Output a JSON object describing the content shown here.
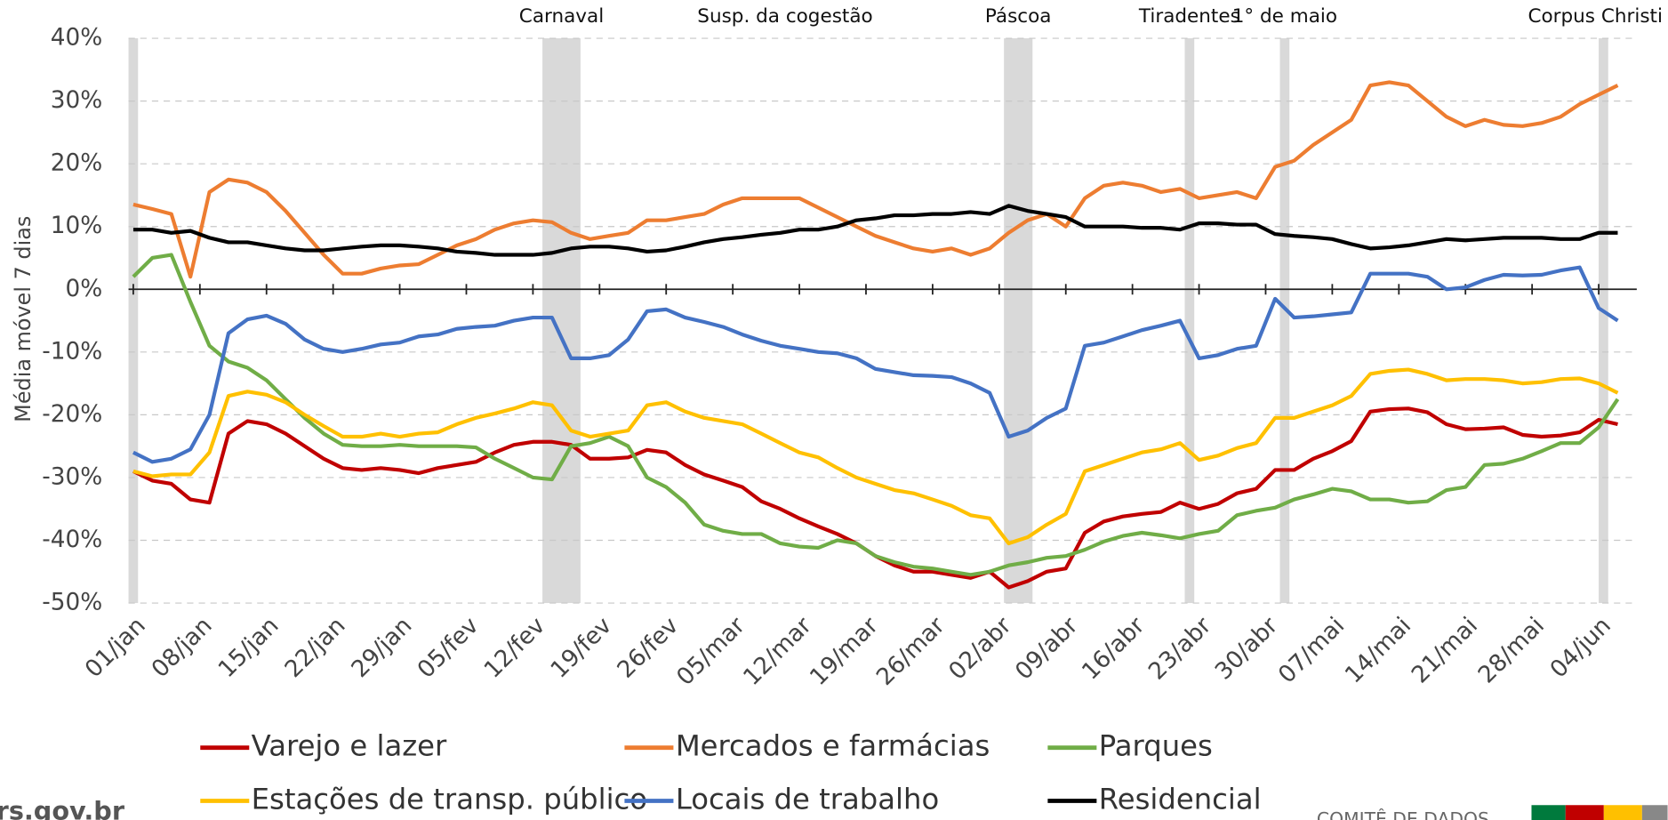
{
  "chart_data": {
    "type": "line",
    "y_label": "Média móvel 7 dias",
    "x": [
      0,
      2,
      4,
      6,
      8,
      10,
      12,
      14,
      16,
      18,
      20,
      22,
      24,
      26,
      28,
      30,
      32,
      34,
      36,
      38,
      40,
      42,
      44,
      46,
      48,
      50,
      52,
      54,
      56,
      58,
      60,
      62,
      64,
      66,
      68,
      70,
      72,
      74,
      76,
      78,
      80,
      82,
      84,
      86,
      88,
      90,
      92,
      94,
      96,
      98,
      100,
      102,
      104,
      106,
      108,
      110,
      112,
      114,
      116,
      118,
      120,
      122,
      124,
      126,
      128,
      130,
      132,
      134,
      136,
      138,
      140,
      142,
      144,
      146,
      148,
      150,
      152,
      154,
      156
    ],
    "xlim": [
      -0.5,
      158
    ],
    "xticks": [
      {
        "value": 0,
        "label": "01/jan"
      },
      {
        "value": 7,
        "label": "08/jan"
      },
      {
        "value": 14,
        "label": "15/jan"
      },
      {
        "value": 21,
        "label": "22/jan"
      },
      {
        "value": 28,
        "label": "29/jan"
      },
      {
        "value": 35,
        "label": "05/fev"
      },
      {
        "value": 42,
        "label": "12/fev"
      },
      {
        "value": 49,
        "label": "19/fev"
      },
      {
        "value": 56,
        "label": "26/fev"
      },
      {
        "value": 63,
        "label": "05/mar"
      },
      {
        "value": 70,
        "label": "12/mar"
      },
      {
        "value": 77,
        "label": "19/mar"
      },
      {
        "value": 84,
        "label": "26/mar"
      },
      {
        "value": 91,
        "label": "02/abr"
      },
      {
        "value": 98,
        "label": "09/abr"
      },
      {
        "value": 105,
        "label": "16/abr"
      },
      {
        "value": 112,
        "label": "23/abr"
      },
      {
        "value": 119,
        "label": "30/abr"
      },
      {
        "value": 126,
        "label": "07/mai"
      },
      {
        "value": 133,
        "label": "14/mai"
      },
      {
        "value": 140,
        "label": "21/mai"
      },
      {
        "value": 147,
        "label": "28/mai"
      },
      {
        "value": 154,
        "label": "04/jun"
      }
    ],
    "ylim": [
      -50,
      40
    ],
    "yticks": [
      {
        "value": 40,
        "label": "40%"
      },
      {
        "value": 30,
        "label": "30%"
      },
      {
        "value": 20,
        "label": "20%"
      },
      {
        "value": 10,
        "label": "10%"
      },
      {
        "value": 0,
        "label": "0%"
      },
      {
        "value": -10,
        "label": "-10%"
      },
      {
        "value": -20,
        "label": "-20%"
      },
      {
        "value": -30,
        "label": "-30%"
      },
      {
        "value": -40,
        "label": "-40%"
      },
      {
        "value": -50,
        "label": "-50%"
      }
    ],
    "grid": true,
    "annotations": [
      {
        "xrange": [
          -0.5,
          0.5
        ]
      },
      {
        "label": "Carnaval",
        "xrange": [
          43,
          47
        ]
      },
      {
        "label": "Susp. da cogestão",
        "x": 68.5
      },
      {
        "label": "Páscoa",
        "xrange": [
          91.5,
          94.5
        ]
      },
      {
        "label": "Tiradentes",
        "xrange": [
          110.5,
          111.5
        ]
      },
      {
        "label": "1° de maio",
        "xrange": [
          120.5,
          121.5
        ]
      },
      {
        "label": "Corpus Christi",
        "xrange": [
          154,
          155
        ]
      }
    ],
    "series": [
      {
        "name": "Varejo e lazer",
        "color": "#c00000",
        "values": [
          -29,
          -30.5,
          -31,
          -33.5,
          -34,
          -23,
          -21,
          -21.5,
          -23,
          -25,
          -27,
          -28.5,
          -28.8,
          -28.5,
          -28.8,
          -29.3,
          -28.5,
          -28,
          -27.5,
          -26,
          -24.8,
          -24.3,
          -24.3,
          -24.8,
          -27,
          -27,
          -26.8,
          -25.6,
          -26,
          -28,
          -29.5,
          -30.5,
          -31.5,
          -33.8,
          -35,
          -36.5,
          -37.8,
          -39,
          -40.5,
          -42.5,
          -44,
          -45,
          -45,
          -45.5,
          -46,
          -45,
          -47.5,
          -46.5,
          -45,
          -44.5,
          -38.8,
          -37,
          -36.2,
          -35.8,
          -35.5,
          -34,
          -35,
          -34.2,
          -32.5,
          -31.8,
          -28.8,
          -28.8,
          -27,
          -25.8,
          -24.2,
          -19.5,
          -19.1,
          -19,
          -19.6,
          -21.5,
          -22.3,
          -22.2,
          -22,
          -23.2,
          -23.5,
          -23.3,
          -22.8,
          -20.8,
          -21.5
        ]
      },
      {
        "name": "Mercados e farmácias",
        "color": "#ed7d31",
        "values": [
          13.5,
          12.8,
          12,
          2,
          15.5,
          17.5,
          17,
          15.5,
          12.5,
          9,
          5.5,
          2.5,
          2.5,
          3.3,
          3.8,
          4,
          5.5,
          7,
          8,
          9.5,
          10.5,
          11,
          10.7,
          9,
          8,
          8.5,
          9,
          11,
          11,
          11.5,
          12,
          13.5,
          14.5,
          14.5,
          14.5,
          14.5,
          13,
          11.5,
          10,
          8.5,
          7.5,
          6.5,
          6,
          6.5,
          5.5,
          6.5,
          9,
          11,
          12,
          10,
          14.5,
          16.5,
          17,
          16.5,
          15.5,
          16,
          14.5,
          15,
          15.5,
          14.5,
          19.5,
          20.5,
          23,
          25,
          27,
          32.5,
          33,
          32.5,
          30,
          27.5,
          26,
          27,
          26.2,
          26,
          26.5,
          27.5,
          29.5,
          31,
          32.5
        ]
      },
      {
        "name": "Parques",
        "color": "#70ad47",
        "values": [
          2,
          5,
          5.5,
          -2,
          -9,
          -11.5,
          -12.5,
          -14.5,
          -17.5,
          -20.5,
          -23,
          -24.8,
          -25,
          -25,
          -24.8,
          -25,
          -25,
          -25,
          -25.2,
          -27,
          -28.5,
          -30,
          -30.3,
          -25,
          -24.5,
          -23.5,
          -25,
          -30,
          -31.5,
          -34,
          -37.5,
          -38.5,
          -39,
          -39,
          -40.5,
          -41,
          -41.2,
          -40,
          -40.5,
          -42.5,
          -43.5,
          -44.2,
          -44.5,
          -45,
          -45.5,
          -45,
          -44,
          -43.5,
          -42.8,
          -42.5,
          -41.5,
          -40.2,
          -39.3,
          -38.8,
          -39.2,
          -39.7,
          -39,
          -38.5,
          -36,
          -35.3,
          -34.8,
          -33.5,
          -32.7,
          -31.8,
          -32.2,
          -33.5,
          -33.5,
          -34,
          -33.8,
          -32,
          -31.5,
          -28,
          -27.8,
          -27,
          -25.8,
          -24.5,
          -24.5,
          -22,
          -17.5
        ]
      },
      {
        "name": "Estações de transp. público",
        "color": "#ffc000",
        "values": [
          -29,
          -29.8,
          -29.5,
          -29.5,
          -26,
          -17,
          -16.3,
          -16.8,
          -18,
          -20,
          -21.8,
          -23.5,
          -23.5,
          -23,
          -23.5,
          -23,
          -22.8,
          -21.5,
          -20.5,
          -19.8,
          -19,
          -18,
          -18.5,
          -22.5,
          -23.5,
          -23,
          -22.5,
          -18.5,
          -18,
          -19.5,
          -20.5,
          -21,
          -21.5,
          -23,
          -24.5,
          -26,
          -26.8,
          -28.5,
          -30,
          -31,
          -32,
          -32.5,
          -33.5,
          -34.5,
          -36,
          -36.5,
          -40.5,
          -39.5,
          -37.5,
          -35.8,
          -29,
          -28,
          -27,
          -26,
          -25.5,
          -24.5,
          -27.2,
          -26.5,
          -25.3,
          -24.5,
          -20.5,
          -20.5,
          -19.5,
          -18.5,
          -17,
          -13.5,
          -13,
          -12.8,
          -13.5,
          -14.5,
          -14.3,
          -14.3,
          -14.5,
          -15,
          -14.8,
          -14.3,
          -14.2,
          -15,
          -16.5
        ]
      },
      {
        "name": "Locais de trabalho",
        "color": "#4472c4",
        "values": [
          -26,
          -27.5,
          -27,
          -25.5,
          -20,
          -7,
          -4.8,
          -4.2,
          -5.5,
          -8,
          -9.5,
          -10,
          -9.5,
          -8.8,
          -8.5,
          -7.5,
          -7.2,
          -6.3,
          -6,
          -5.8,
          -5,
          -4.5,
          -4.5,
          -11,
          -11,
          -10.5,
          -8,
          -3.5,
          -3.2,
          -4.5,
          -5.2,
          -6,
          -7.2,
          -8.2,
          -9,
          -9.5,
          -10,
          -10.2,
          -11,
          -12.7,
          -13.2,
          -13.7,
          -13.8,
          -14,
          -15,
          -16.5,
          -23.5,
          -22.5,
          -20.5,
          -19,
          -9,
          -8.5,
          -7.5,
          -6.5,
          -5.8,
          -5,
          -11,
          -10.5,
          -9.5,
          -9,
          -1.5,
          -4.5,
          -4.3,
          -4,
          -3.7,
          2.5,
          2.5,
          2.5,
          2,
          0,
          0.3,
          1.5,
          2.3,
          2.2,
          2.3,
          3,
          3.5,
          -3,
          -5
        ]
      },
      {
        "name": "Residencial",
        "color": "#000000",
        "values": [
          9.5,
          9.5,
          9,
          9.3,
          8.2,
          7.5,
          7.5,
          7,
          6.5,
          6.2,
          6.2,
          6.5,
          6.8,
          7,
          7,
          6.8,
          6.5,
          6,
          5.8,
          5.5,
          5.5,
          5.5,
          5.8,
          6.5,
          6.8,
          6.8,
          6.5,
          6,
          6.2,
          6.8,
          7.5,
          8,
          8.3,
          8.7,
          9,
          9.5,
          9.5,
          10,
          11,
          11.3,
          11.8,
          11.8,
          12,
          12,
          12.3,
          12,
          13.3,
          12.5,
          12,
          11.5,
          10,
          10,
          10,
          9.8,
          9.8,
          9.5,
          10.5,
          10.5,
          10.3,
          10.3,
          8.8,
          8.5,
          8.3,
          8,
          7.2,
          6.5,
          6.7,
          7,
          7.5,
          8,
          7.8,
          8,
          8.2,
          8.2,
          8.2,
          8,
          8,
          9,
          9
        ]
      }
    ]
  },
  "footer": {
    "site": "rs.gov.br",
    "org": "COMITÊ DE DADOS"
  }
}
